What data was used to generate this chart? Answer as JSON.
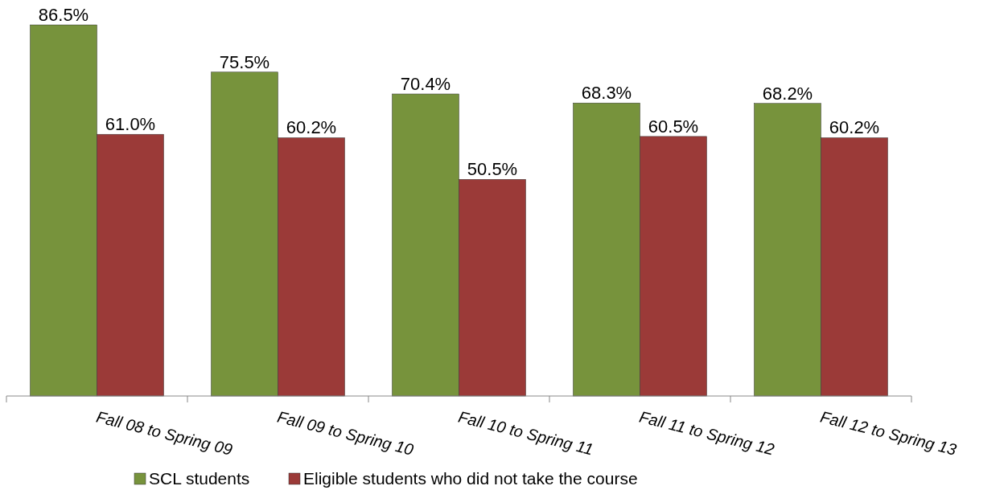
{
  "chart_data": {
    "type": "bar",
    "categories": [
      "Fall 08 to Spring 09",
      "Fall 09 to Spring 10",
      "Fall 10 to Spring 11",
      "Fall 11 to Spring 12",
      "Fall 12 to Spring 13"
    ],
    "series": [
      {
        "name": "SCL students",
        "color": "#77933c",
        "values": [
          86.5,
          75.5,
          70.4,
          68.3,
          68.2
        ],
        "value_labels": [
          "86.5%",
          "75.5%",
          "70.4%",
          "68.3%",
          "68.2%"
        ]
      },
      {
        "name": "Eligible students who did not take the course",
        "color": "#9b3a38",
        "values": [
          61.0,
          60.2,
          50.5,
          60.5,
          60.2
        ],
        "value_labels": [
          "61.0%",
          "60.2%",
          "50.5%",
          "60.5%",
          "60.2%"
        ]
      }
    ],
    "legend": "bottom"
  }
}
